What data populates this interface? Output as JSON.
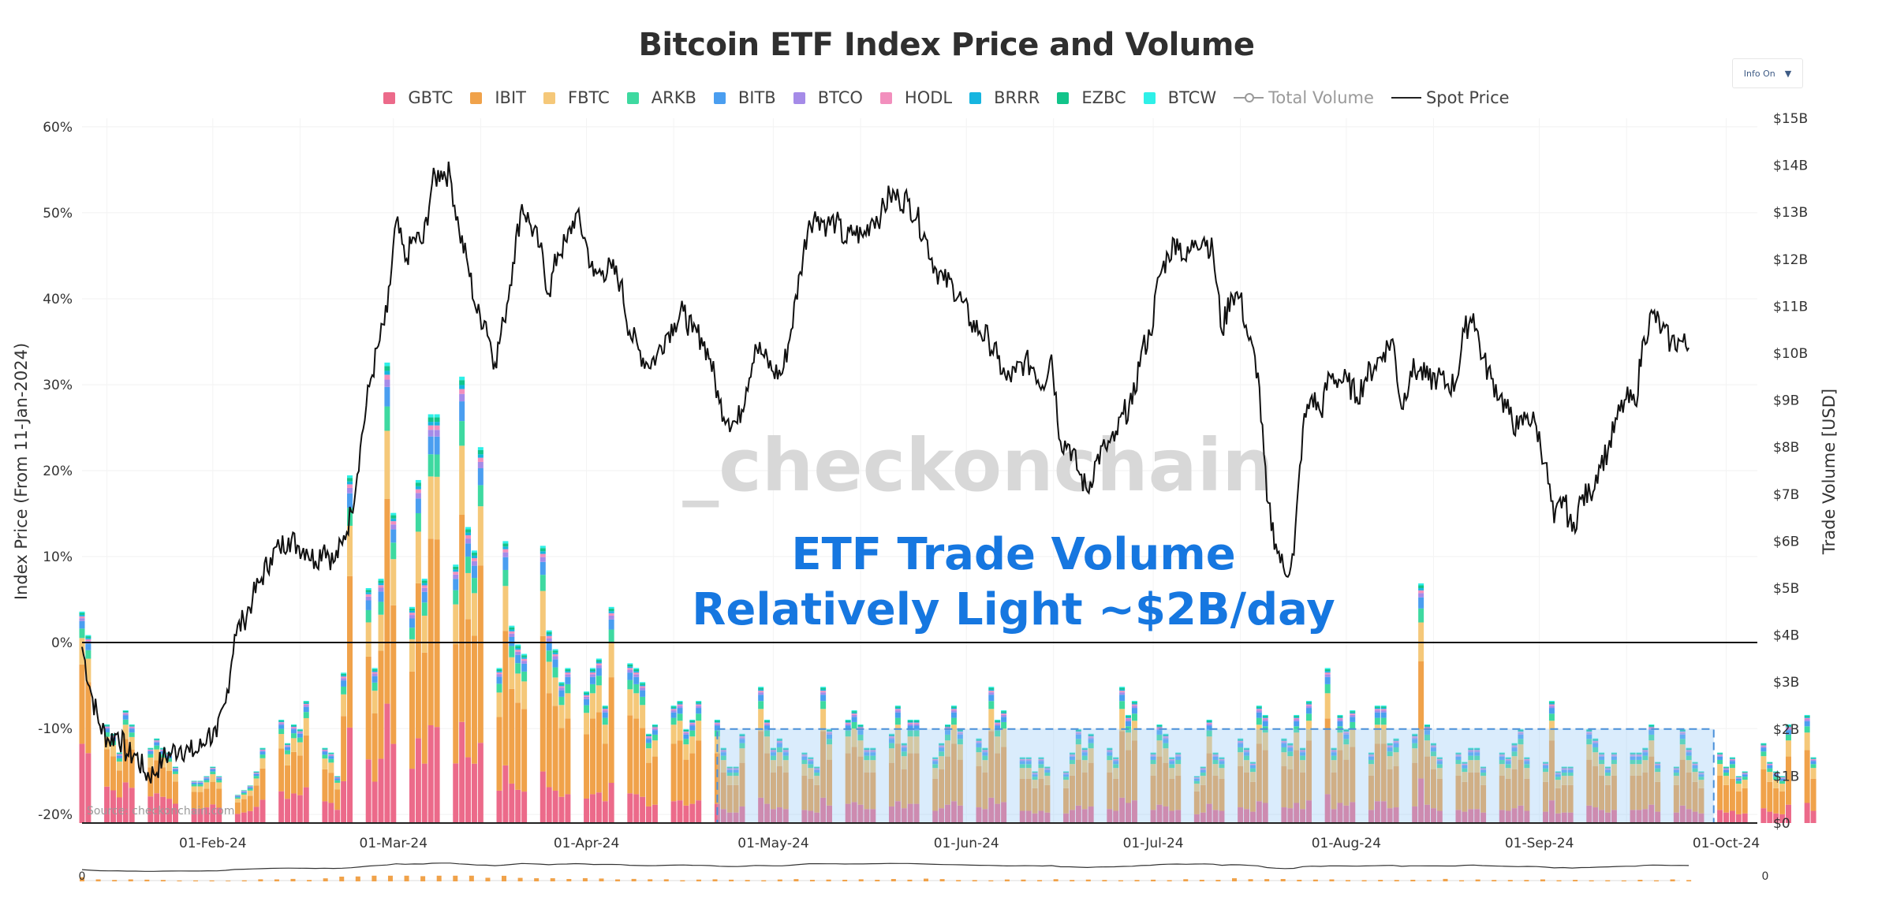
{
  "chart_data": {
    "type": "bar",
    "title": "Bitcoin ETF Index Price and Volume",
    "y_left_label": "Index Price (From 11-Jan-2024)",
    "y_right_label": "Trade Volume [USD]",
    "y_left_ticks": [
      "60%",
      "50%",
      "40%",
      "30%",
      "20%",
      "10%",
      "0%",
      "-10%",
      "-20%"
    ],
    "y_left_range": [
      -21,
      61
    ],
    "y_right_ticks": [
      "$15B",
      "$14B",
      "$13B",
      "$12B",
      "$11B",
      "$10B",
      "$9B",
      "$8B",
      "$7B",
      "$6B",
      "$5B",
      "$4B",
      "$3B",
      "$2B",
      "$1B",
      "$0"
    ],
    "y_right_range": [
      0,
      15
    ],
    "x_ticks": [
      "01-Feb-24",
      "01-Mar-24",
      "01-Apr-24",
      "01-May-24",
      "01-Jun-24",
      "01-Jul-24",
      "01-Aug-24",
      "01-Sep-24",
      "01-Oct-24"
    ],
    "x_range": [
      "2024-01-11",
      "2024-10-06"
    ],
    "legend": [
      {
        "name": "GBTC",
        "color": "#ec6a8a",
        "kind": "bar"
      },
      {
        "name": "IBIT",
        "color": "#f0a24a",
        "kind": "bar"
      },
      {
        "name": "FBTC",
        "color": "#f5c879",
        "kind": "bar"
      },
      {
        "name": "ARKB",
        "color": "#3ed9a0",
        "kind": "bar"
      },
      {
        "name": "BITB",
        "color": "#4a9ef0",
        "kind": "bar"
      },
      {
        "name": "BTCO",
        "color": "#a58be8",
        "kind": "bar"
      },
      {
        "name": "HODL",
        "color": "#f28fbd",
        "kind": "bar"
      },
      {
        "name": "BRRR",
        "color": "#16b5e0",
        "kind": "bar"
      },
      {
        "name": "EZBC",
        "color": "#12c48a",
        "kind": "bar"
      },
      {
        "name": "BTCW",
        "color": "#2ef0e8",
        "kind": "bar"
      },
      {
        "name": "Total Volume",
        "color": "#999999",
        "kind": "line-muted"
      },
      {
        "name": "Spot Price",
        "color": "#222222",
        "kind": "line"
      }
    ],
    "series": [
      {
        "name": "Total Volume",
        "unit": "USD B",
        "values": [
          4.5,
          4.0,
          2.1,
          1.9,
          1.5,
          2.4,
          2.1,
          1.6,
          1.8,
          1.6,
          1.5,
          1.2,
          0.9,
          0.9,
          1.0,
          1.2,
          1.0,
          0.6,
          0.7,
          0.8,
          1.1,
          1.6,
          2.2,
          1.7,
          2.1,
          2.0,
          2.6,
          1.6,
          1.5,
          1.0,
          3.2,
          7.4,
          5.0,
          3.3,
          5.2,
          9.8,
          6.6,
          4.6,
          7.3,
          5.2,
          8.7,
          8.7,
          5.5,
          9.5,
          6.3,
          5.8,
          8.0,
          3.3,
          6.0,
          4.2,
          3.8,
          3.6,
          5.9,
          4.1,
          3.7,
          3.0,
          3.3,
          2.8,
          3.3,
          3.5,
          2.5,
          4.6,
          3.4,
          3.3,
          3.0,
          1.9,
          2.1,
          2.5,
          2.6,
          2.0,
          2.2,
          2.6,
          2.2,
          1.6,
          1.2,
          1.2,
          1.9,
          2.9,
          2.2,
          1.6,
          1.8,
          1.6,
          1.5,
          1.4,
          1.2,
          2.9,
          2.0,
          2.2,
          2.4,
          2.1,
          1.6,
          1.6,
          1.9,
          2.5,
          1.7,
          2.2,
          2.2,
          1.4,
          1.7,
          2.1,
          2.5,
          2.0,
          1.8,
          1.6,
          2.9,
          2.2,
          2.4,
          1.4,
          1.4,
          1.1,
          1.4,
          1.2,
          1.1,
          1.5,
          2.0,
          1.6,
          1.9,
          1.6,
          1.4,
          2.9,
          2.3,
          2.6,
          1.5,
          2.1,
          1.9,
          1.4,
          1.5,
          1.0,
          1.2,
          2.2,
          1.5,
          1.4,
          1.8,
          1.6,
          1.3,
          2.5,
          2.3,
          1.8,
          1.7,
          2.3,
          1.6,
          2.6,
          3.3,
          1.6,
          2.3,
          2.0,
          2.4,
          1.5,
          2.5,
          2.5,
          1.7,
          1.8,
          1.9,
          5.1,
          2.1,
          1.7,
          1.4,
          1.5,
          1.3,
          1.6,
          1.6,
          1.2,
          1.5,
          1.4,
          1.7,
          2.0,
          1.4,
          1.3,
          2.6,
          1.1,
          1.2,
          1.2,
          2.0,
          1.8,
          1.5,
          1.2,
          1.5,
          1.5,
          1.5,
          1.6,
          2.1,
          1.3,
          1.2,
          2.0,
          1.6,
          1.3,
          1.1,
          1.5,
          1.2,
          1.4,
          1.0,
          1.1,
          1.7,
          1.3,
          1.1,
          1.0,
          2.1,
          2.3,
          1.4
        ]
      },
      {
        "name": "Spot Price",
        "unit": "% from 11-Jan-2024",
        "values": [
          -0.5,
          -5.8,
          -9.7,
          -11.4,
          -10.5,
          -13.0,
          -13.1,
          -15.2,
          -15.3,
          -13.5,
          -12.8,
          -12.1,
          -12.8,
          -12.6,
          -10.6,
          -11.0,
          -7.0,
          0.9,
          2.6,
          5.1,
          7.5,
          9.9,
          11.0,
          12.2,
          11.3,
          10.9,
          9.5,
          11.4,
          9.3,
          11.4,
          15.2,
          22.7,
          29.8,
          34.5,
          38.4,
          49.0,
          44.4,
          47.1,
          46.5,
          53.4,
          54.9,
          54.4,
          48.0,
          43.8,
          38.3,
          37.3,
          32.5,
          37.4,
          44.2,
          51.0,
          48.5,
          46.0,
          40.6,
          45.3,
          46.6,
          49.9,
          47.1,
          42.6,
          43.3,
          43.5,
          41.9,
          36.2,
          34.1,
          32.4,
          33.3,
          35.7,
          37.2,
          38.5,
          36.1,
          35.5,
          33.0,
          27.9,
          26.0,
          25.5,
          29.6,
          34.7,
          33.2,
          31.5,
          31.3,
          36.4,
          43.1,
          49.1,
          49.6,
          48.6,
          49.0,
          46.7,
          47.8,
          47.2,
          49.3,
          49.8,
          52.1,
          51.6,
          51.4,
          49.5,
          47.0,
          43.7,
          42.1,
          41.6,
          39.7,
          37.3,
          36.2,
          35.3,
          33.0,
          30.5,
          31.4,
          32.7,
          32.0,
          29.9,
          33.5,
          23.4,
          23.0,
          19.9,
          17.6,
          21.2,
          22.7,
          23.4,
          26.6,
          27.7,
          33.8,
          35.8,
          42.6,
          45.1,
          47.0,
          44.4,
          46.8,
          47.1,
          45.4,
          36.1,
          40.6,
          40.2,
          35.2,
          31.4,
          16.5,
          11.5,
          8.0,
          10.2,
          24.9,
          28.7,
          26.7,
          31.1,
          30.6,
          30.3,
          28.6,
          30.8,
          32.2,
          33.8,
          35.3,
          27.2,
          31.6,
          31.6,
          30.5,
          30.9,
          30.0,
          30.1,
          36.2,
          38.3,
          33.1,
          30.7,
          28.7,
          26.5,
          24.8,
          26.5,
          25.2,
          20.9,
          13.9,
          17.0,
          12.9,
          16.7,
          17.3,
          20.6,
          22.4,
          26.0,
          28.3,
          27.7,
          35.5,
          38.3,
          36.4,
          34.9,
          35.1,
          34.3
        ]
      },
      {
        "name": "Total Volume (reference)",
        "unit": "USD B",
        "values": [
          2.0,
          2.0
        ]
      }
    ],
    "reference_lines": [
      {
        "axis": "left",
        "value": 0
      }
    ],
    "annotations": [
      {
        "text_lines": [
          "ETF Trade Volume",
          "Relatively Light ~$2B/day"
        ],
        "color": "#1677e0"
      }
    ],
    "highlight_box": {
      "x_start": "2024-04-22",
      "x_end": "2024-09-29",
      "y_top": 2.0,
      "y_bottom": 0,
      "axis": "right"
    },
    "legend_placement": "top-center",
    "grid": true
  },
  "watermark": "_checkonchain",
  "source_label": "Source: checkonchain.com",
  "navigator_labels": [
    "0",
    "0"
  ],
  "info_button": {
    "label": "Info On",
    "caret": "▼"
  }
}
